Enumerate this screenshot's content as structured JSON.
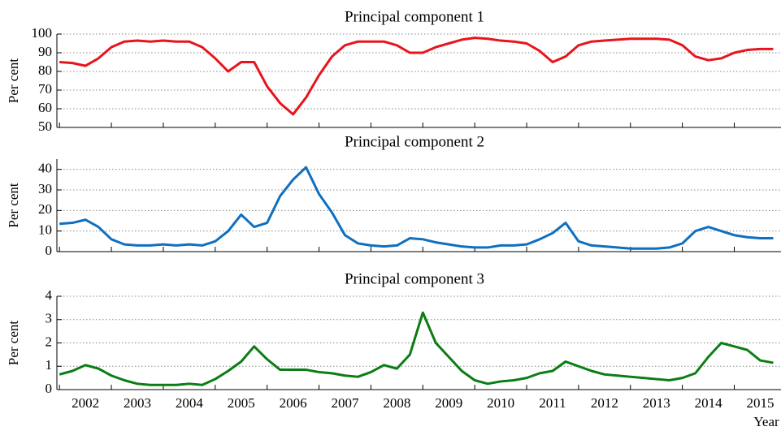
{
  "chart_data": [
    {
      "type": "line",
      "title": "Principal component 1",
      "y_label": "Per cent",
      "color": "#e8141c",
      "x": [
        2002.0,
        2002.25,
        2002.5,
        2002.75,
        2003.0,
        2003.25,
        2003.5,
        2003.75,
        2004.0,
        2004.25,
        2004.5,
        2004.75,
        2005.0,
        2005.25,
        2005.5,
        2005.75,
        2006.0,
        2006.25,
        2006.5,
        2006.75,
        2007.0,
        2007.25,
        2007.5,
        2007.75,
        2008.0,
        2008.25,
        2008.5,
        2008.75,
        2009.0,
        2009.25,
        2009.5,
        2009.75,
        2010.0,
        2010.25,
        2010.5,
        2010.75,
        2011.0,
        2011.25,
        2011.5,
        2011.75,
        2012.0,
        2012.25,
        2012.5,
        2012.75,
        2013.0,
        2013.25,
        2013.5,
        2013.75,
        2014.0,
        2014.25,
        2014.5,
        2014.75,
        2015.0,
        2015.25,
        2015.5,
        2015.75
      ],
      "values": [
        85,
        84.5,
        83,
        87,
        93,
        96,
        96.5,
        96,
        96.5,
        96,
        96,
        93,
        87,
        80,
        85,
        85,
        72,
        63,
        57,
        66,
        78,
        88,
        94,
        96,
        96,
        96,
        94,
        90,
        90,
        93,
        95,
        97,
        98,
        97.5,
        96.5,
        96,
        95,
        91,
        85,
        88,
        94,
        96,
        96.5,
        97,
        97.5,
        97.5,
        97.5,
        97,
        94,
        88,
        86,
        87,
        90,
        91.5,
        92,
        92
      ],
      "xlim": [
        2001.95,
        2015.9
      ],
      "ylim": [
        50,
        100
      ],
      "yticks": [
        50,
        60,
        70,
        80,
        90,
        100
      ],
      "grid": true
    },
    {
      "type": "line",
      "title": "Principal component 2",
      "y_label": "Per cent",
      "color": "#0f6fc0",
      "x": [
        2002.0,
        2002.25,
        2002.5,
        2002.75,
        2003.0,
        2003.25,
        2003.5,
        2003.75,
        2004.0,
        2004.25,
        2004.5,
        2004.75,
        2005.0,
        2005.25,
        2005.5,
        2005.75,
        2006.0,
        2006.25,
        2006.5,
        2006.75,
        2007.0,
        2007.25,
        2007.5,
        2007.75,
        2008.0,
        2008.25,
        2008.5,
        2008.75,
        2009.0,
        2009.25,
        2009.5,
        2009.75,
        2010.0,
        2010.25,
        2010.5,
        2010.75,
        2011.0,
        2011.25,
        2011.5,
        2011.75,
        2012.0,
        2012.25,
        2012.5,
        2012.75,
        2013.0,
        2013.25,
        2013.5,
        2013.75,
        2014.0,
        2014.25,
        2014.5,
        2014.75,
        2015.0,
        2015.25,
        2015.5,
        2015.75
      ],
      "values": [
        13.5,
        14,
        15.5,
        12,
        6,
        3.5,
        3,
        3,
        3.5,
        3,
        3.5,
        3,
        5,
        10,
        18,
        12,
        14,
        27,
        35,
        41,
        28,
        19,
        8,
        4,
        3,
        2.5,
        3,
        6.5,
        6,
        4.5,
        3.5,
        2.5,
        2,
        2,
        3,
        3,
        3.5,
        6,
        9,
        14,
        5,
        3,
        2.5,
        2,
        1.5,
        1.5,
        1.5,
        2,
        4,
        10,
        12,
        10,
        8,
        7,
        6.5,
        6.5
      ],
      "xlim": [
        2001.95,
        2015.9
      ],
      "ylim": [
        0,
        45
      ],
      "yticks": [
        0,
        10,
        20,
        30,
        40
      ],
      "grid": true
    },
    {
      "type": "line",
      "title": "Principal component 3",
      "y_label": "Per cent",
      "x_label": "Year",
      "color": "#0a7d14",
      "x": [
        2002.0,
        2002.25,
        2002.5,
        2002.75,
        2003.0,
        2003.25,
        2003.5,
        2003.75,
        2004.0,
        2004.25,
        2004.5,
        2004.75,
        2005.0,
        2005.25,
        2005.5,
        2005.75,
        2006.0,
        2006.25,
        2006.5,
        2006.75,
        2007.0,
        2007.25,
        2007.5,
        2007.75,
        2008.0,
        2008.25,
        2008.5,
        2008.75,
        2009.0,
        2009.25,
        2009.5,
        2009.75,
        2010.0,
        2010.25,
        2010.5,
        2010.75,
        2011.0,
        2011.25,
        2011.5,
        2011.75,
        2012.0,
        2012.25,
        2012.5,
        2012.75,
        2013.0,
        2013.25,
        2013.5,
        2013.75,
        2014.0,
        2014.25,
        2014.5,
        2014.75,
        2015.0,
        2015.25,
        2015.5,
        2015.75
      ],
      "values": [
        0.65,
        0.8,
        1.05,
        0.9,
        0.6,
        0.4,
        0.25,
        0.2,
        0.2,
        0.2,
        0.25,
        0.2,
        0.45,
        0.8,
        1.2,
        1.85,
        1.3,
        0.85,
        0.85,
        0.85,
        0.75,
        0.7,
        0.6,
        0.55,
        0.75,
        1.05,
        0.9,
        1.5,
        3.3,
        2.0,
        1.4,
        0.8,
        0.4,
        0.25,
        0.35,
        0.4,
        0.5,
        0.7,
        0.8,
        1.2,
        1.0,
        0.8,
        0.65,
        0.6,
        0.55,
        0.5,
        0.45,
        0.4,
        0.5,
        0.7,
        1.4,
        2.0,
        1.85,
        1.7,
        1.25,
        1.15
      ],
      "xlim": [
        2001.95,
        2015.9
      ],
      "ylim": [
        0,
        4
      ],
      "yticks": [
        0,
        1,
        2,
        3,
        4
      ],
      "grid": true,
      "xticks": [
        {
          "value": 2002.5,
          "label": "2002"
        },
        {
          "value": 2003.5,
          "label": "2003"
        },
        {
          "value": 2004.5,
          "label": "2004"
        },
        {
          "value": 2005.5,
          "label": "2005"
        },
        {
          "value": 2006.5,
          "label": "2006"
        },
        {
          "value": 2007.5,
          "label": "2007"
        },
        {
          "value": 2008.5,
          "label": "2008"
        },
        {
          "value": 2009.5,
          "label": "2009"
        },
        {
          "value": 2010.5,
          "label": "2010"
        },
        {
          "value": 2011.5,
          "label": "2011"
        },
        {
          "value": 2012.5,
          "label": "2012"
        },
        {
          "value": 2013.5,
          "label": "2013"
        },
        {
          "value": 2014.5,
          "label": "2014"
        },
        {
          "value": 2015.5,
          "label": "2015"
        }
      ]
    }
  ]
}
